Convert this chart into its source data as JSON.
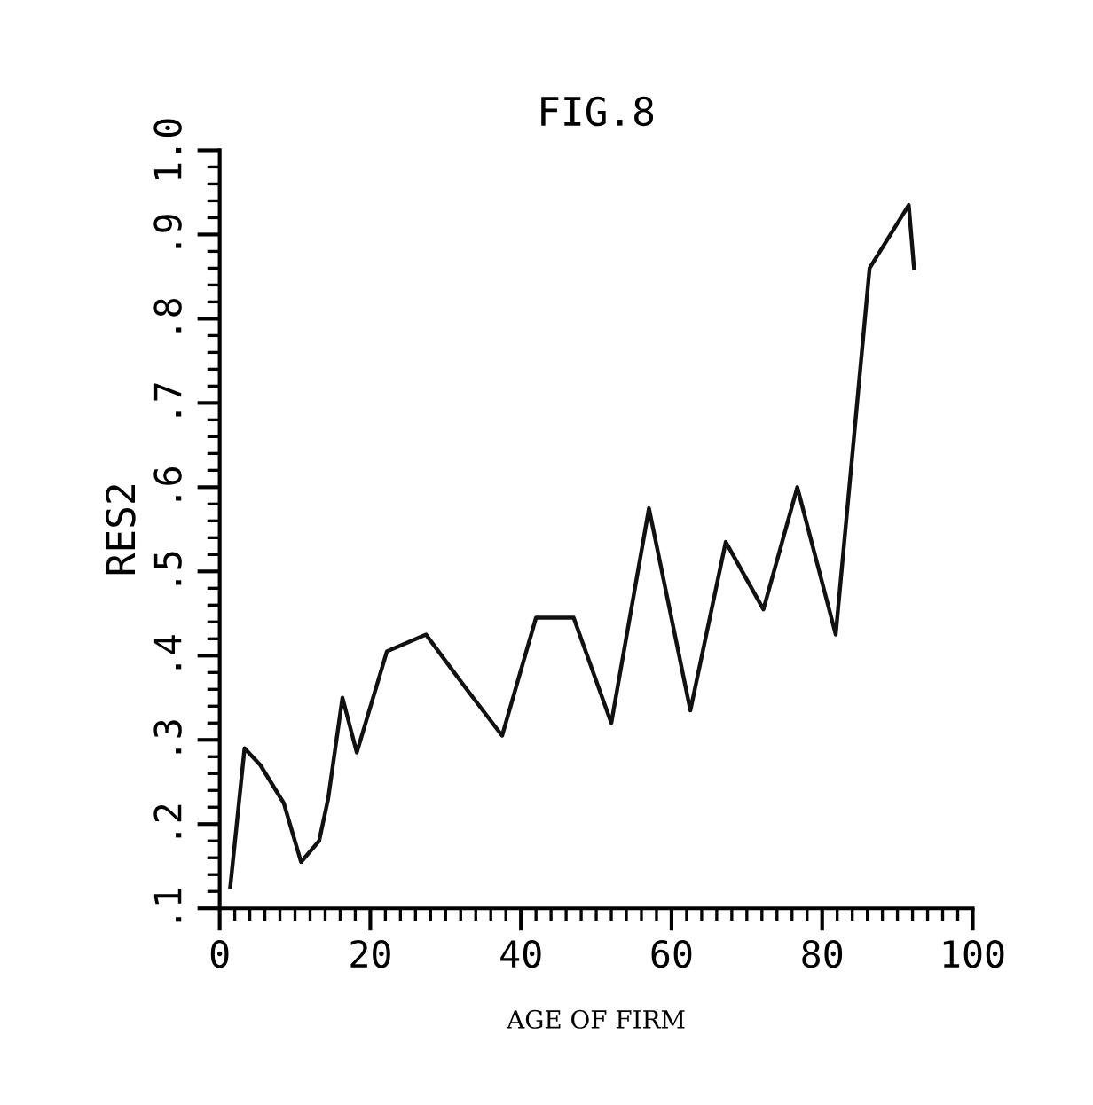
{
  "chart_data": {
    "type": "line",
    "title": "FIG.8",
    "xlabel": "AGE OF FIRM",
    "ylabel": "RES2",
    "x": [
      1.4,
      3.3,
      5.4,
      8.5,
      10.8,
      13.2,
      14.4,
      16.3,
      18.2,
      22.2,
      27.4,
      32.8,
      37.5,
      42,
      47,
      52,
      57,
      62.5,
      67.2,
      72.2,
      76.7,
      81.8,
      86.3,
      91.5,
      92.2
    ],
    "series": [
      {
        "color": "#111111",
        "values": [
          0.125,
          0.29,
          0.27,
          0.225,
          0.155,
          0.18,
          0.23,
          0.35,
          0.285,
          0.405,
          0.425,
          0.36,
          0.305,
          0.445,
          0.445,
          0.32,
          0.575,
          0.335,
          0.535,
          0.455,
          0.6,
          0.425,
          0.86,
          0.935,
          0.86
        ]
      }
    ],
    "xlim": [
      0,
      100
    ],
    "ylim": [
      0.1,
      1.0
    ],
    "xticks": [
      0,
      20,
      40,
      60,
      80,
      100
    ],
    "yticks": [
      {
        "value": 0.1,
        "label": ".1"
      },
      {
        "value": 0.2,
        "label": ".2"
      },
      {
        "value": 0.3,
        "label": ".3"
      },
      {
        "value": 0.4,
        "label": ".4"
      },
      {
        "value": 0.5,
        "label": ".5"
      },
      {
        "value": 0.6,
        "label": ".6"
      },
      {
        "value": 0.7,
        "label": ".7"
      },
      {
        "value": 0.8,
        "label": ".8"
      },
      {
        "value": 0.9,
        "label": ".9"
      },
      {
        "value": 1.0,
        "label": "1.0"
      }
    ],
    "grid": false,
    "marker": "none",
    "line_style": "solid"
  }
}
